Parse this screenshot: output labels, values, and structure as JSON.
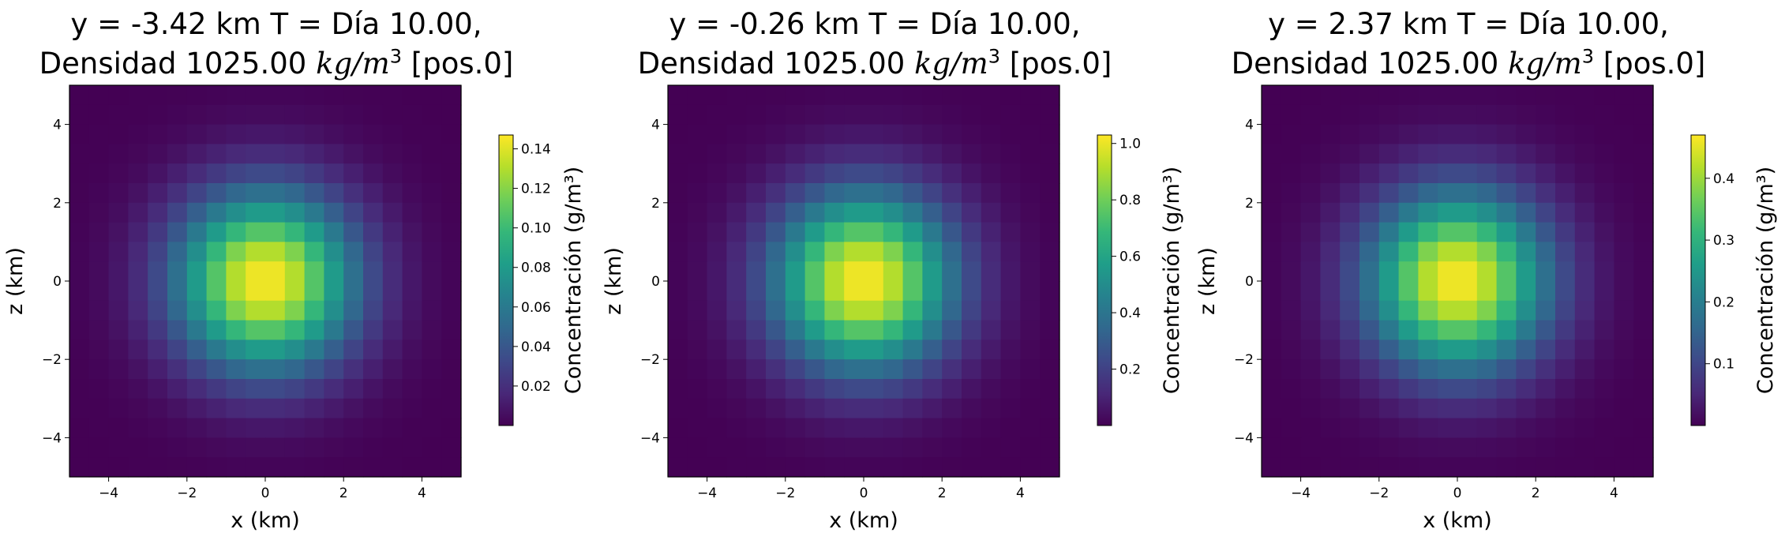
{
  "chart_data": [
    {
      "type": "heatmap",
      "title_line1": "y = -3.42 km  T = Día 10.00,",
      "title_line2_prefix": "Densidad 1025.00 ",
      "title_unit_base": "kg/m",
      "title_unit_exp": "3",
      "title_suffix": " [pos.0]",
      "xlabel": "x (km)",
      "ylabel": "z (km)",
      "colorbar_label": "Concentración (g/m³)",
      "colormap": "viridis",
      "xlim": [
        -5,
        5
      ],
      "ylim": [
        -5,
        5
      ],
      "grid_cells": 20,
      "peak": 0.147,
      "sigma_km": 1.6,
      "x_ticks": [
        "−4",
        "−2",
        "0",
        "2",
        "4"
      ],
      "y_ticks": [
        "4",
        "2",
        "0",
        "−2",
        "−4"
      ],
      "colorbar_range": [
        0,
        0.147
      ],
      "colorbar_ticks": [
        0.02,
        0.04,
        0.06,
        0.08,
        0.1,
        0.12,
        0.14
      ],
      "colorbar_tick_labels": [
        "0.02",
        "0.04",
        "0.06",
        "0.08",
        "0.10",
        "0.12",
        "0.14"
      ]
    },
    {
      "type": "heatmap",
      "title_line1": "y = -0.26 km  T = Día 10.00,",
      "title_line2_prefix": "Densidad 1025.00 ",
      "title_unit_base": "kg/m",
      "title_unit_exp": "3",
      "title_suffix": " [pos.0]",
      "xlabel": "x (km)",
      "ylabel": "z (km)",
      "colorbar_label": "Concentración (g/m³)",
      "colormap": "viridis",
      "xlim": [
        -5,
        5
      ],
      "ylim": [
        -5,
        5
      ],
      "grid_cells": 20,
      "peak": 1.03,
      "sigma_km": 1.6,
      "x_ticks": [
        "−4",
        "−2",
        "0",
        "2",
        "4"
      ],
      "y_ticks": [
        "4",
        "2",
        "0",
        "−2",
        "−4"
      ],
      "colorbar_range": [
        0,
        1.03
      ],
      "colorbar_ticks": [
        0.2,
        0.4,
        0.6,
        0.8,
        1.0
      ],
      "colorbar_tick_labels": [
        "0.2",
        "0.4",
        "0.6",
        "0.8",
        "1.0"
      ]
    },
    {
      "type": "heatmap",
      "title_line1": "y = 2.37 km  T = Día 10.00,",
      "title_line2_prefix": "Densidad 1025.00 ",
      "title_unit_base": "kg/m",
      "title_unit_exp": "3",
      "title_suffix": " [pos.0]",
      "xlabel": "x (km)",
      "ylabel": "z (km)",
      "colorbar_label": "Concentración (g/m³)",
      "colormap": "viridis",
      "xlim": [
        -5,
        5
      ],
      "ylim": [
        -5,
        5
      ],
      "grid_cells": 20,
      "peak": 0.47,
      "sigma_km": 1.6,
      "x_ticks": [
        "−4",
        "−2",
        "0",
        "2",
        "4"
      ],
      "y_ticks": [
        "4",
        "2",
        "0",
        "−2",
        "−4"
      ],
      "colorbar_range": [
        0,
        0.47
      ],
      "colorbar_ticks": [
        0.1,
        0.2,
        0.3,
        0.4
      ],
      "colorbar_tick_labels": [
        "0.1",
        "0.2",
        "0.3",
        "0.4"
      ]
    }
  ]
}
